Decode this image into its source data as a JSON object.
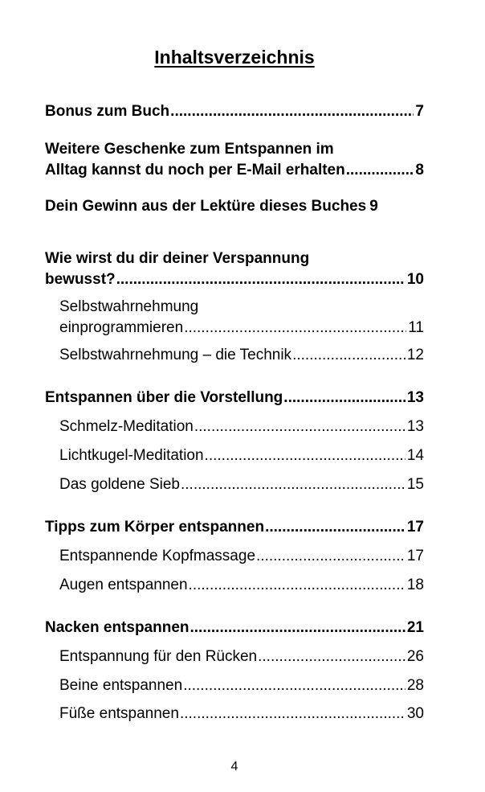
{
  "title": "Inhaltsverzeichnis",
  "entries": [
    {
      "lines": [
        "Bonus zum Buch"
      ],
      "page": "7"
    },
    {
      "lines": [
        "Weitere Geschenke zum Entspannen im",
        "Alltag kannst du noch per E-Mail erhalten"
      ],
      "page": "8"
    },
    {
      "lines": [
        "Dein Gewinn aus der Lektüre dieses Buches"
      ],
      "page": "9"
    },
    {
      "lines": [
        "Wie wirst du dir deiner Verspannung",
        "bewusst?"
      ],
      "page": "10"
    },
    {
      "lines": [
        "Selbstwahrnehmung",
        "einprogrammieren"
      ],
      "page": "11"
    },
    {
      "lines": [
        "Selbstwahrnehmung – die Technik"
      ],
      "page": "12"
    },
    {
      "lines": [
        "Entspannen über die Vorstellung"
      ],
      "page": "13"
    },
    {
      "lines": [
        "Schmelz-Meditation"
      ],
      "page": "13"
    },
    {
      "lines": [
        "Lichtkugel-Meditation"
      ],
      "page": "14"
    },
    {
      "lines": [
        "Das goldene Sieb"
      ],
      "page": "15"
    },
    {
      "lines": [
        "Tipps zum Körper entspannen"
      ],
      "page": "17"
    },
    {
      "lines": [
        "Entspannende Kopfmassage"
      ],
      "page": "17"
    },
    {
      "lines": [
        "Augen entspannen"
      ],
      "page": "18"
    },
    {
      "lines": [
        "Nacken entspannen"
      ],
      "page": "21"
    },
    {
      "lines": [
        "Entspannung für den Rücken"
      ],
      "page": "26"
    },
    {
      "lines": [
        "Beine entspannen"
      ],
      "page": "28"
    },
    {
      "lines": [
        "Füße entspannen"
      ],
      "page": "30"
    }
  ],
  "page_number": "4"
}
